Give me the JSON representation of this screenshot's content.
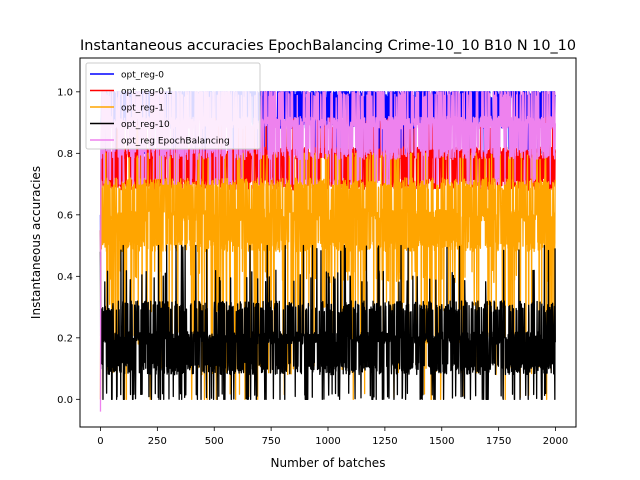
{
  "chart_data": {
    "type": "line",
    "title": "Instantaneous accuracies EpochBalancing Crime-10_10 B10 N 10_10",
    "xlabel": "Number of batches",
    "ylabel": "Instantaneous accuracies",
    "xlim": [
      -90,
      2090
    ],
    "ylim": [
      -0.09,
      1.11
    ],
    "xticks": [
      0,
      250,
      500,
      750,
      1000,
      1250,
      1500,
      1750,
      2000
    ],
    "yticks": [
      0.0,
      0.2,
      0.4,
      0.6,
      0.8,
      1.0
    ],
    "xtick_labels": [
      "0",
      "250",
      "500",
      "750",
      "1000",
      "1250",
      "1500",
      "1750",
      "2000"
    ],
    "ytick_labels": [
      "0.0",
      "0.2",
      "0.4",
      "0.6",
      "0.8",
      "1.0"
    ],
    "grid": false,
    "legend_position": "top-left",
    "n_points": 2000,
    "series": [
      {
        "name": "opt_reg-0",
        "color": "#0000ff",
        "low": 0.8,
        "high": 1.0,
        "typical": [
          0.9,
          1.0
        ],
        "start": [
          0.6,
          0.3,
          0.7
        ]
      },
      {
        "name": "opt_reg-0.1",
        "color": "#ff0000",
        "low": 0.65,
        "high": 0.95,
        "typical": [
          0.72,
          0.85
        ],
        "start": [
          0.55,
          0.4,
          0.7
        ]
      },
      {
        "name": "opt_reg-1",
        "color": "#ffa500",
        "low": 0.0,
        "high": 0.8,
        "typical": [
          0.45,
          0.75
        ],
        "start": [
          0.0,
          0.3,
          0.6
        ]
      },
      {
        "name": "opt_reg-10",
        "color": "#000000",
        "low": 0.0,
        "high": 0.5,
        "typical": [
          0.1,
          0.3
        ],
        "start": [
          0.48,
          0.1,
          0.2
        ]
      },
      {
        "name": "opt_reg EpochBalancing",
        "color": "#ee82ee",
        "low": 0.7,
        "high": 1.0,
        "typical": [
          0.82,
          0.98
        ],
        "start": [
          -0.04,
          0.4,
          0.8
        ]
      }
    ]
  }
}
